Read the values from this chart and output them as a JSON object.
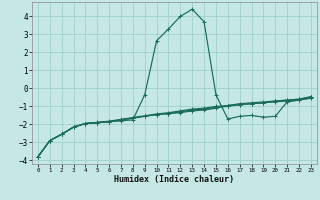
{
  "xlabel": "Humidex (Indice chaleur)",
  "xlim": [
    -0.5,
    23.5
  ],
  "ylim": [
    -4.2,
    4.8
  ],
  "yticks": [
    -4,
    -3,
    -2,
    -1,
    0,
    1,
    2,
    3,
    4
  ],
  "xticks": [
    0,
    1,
    2,
    3,
    4,
    5,
    6,
    7,
    8,
    9,
    10,
    11,
    12,
    13,
    14,
    15,
    16,
    17,
    18,
    19,
    20,
    21,
    22,
    23
  ],
  "background_color": "#c5e8e5",
  "grid_color": "#9fcfca",
  "line_color": "#1a6b5a",
  "line1_x": [
    0,
    1,
    2,
    3,
    4,
    5,
    6,
    7,
    8,
    9,
    10,
    11,
    12,
    13,
    14,
    15,
    16,
    17,
    18,
    19,
    20,
    21,
    22,
    23
  ],
  "line1_y": [
    -3.8,
    -2.9,
    -2.55,
    -2.15,
    -1.95,
    -1.9,
    -1.85,
    -1.8,
    -1.75,
    -0.35,
    2.65,
    3.3,
    4.0,
    4.4,
    3.7,
    -0.35,
    -1.7,
    -1.55,
    -1.5,
    -1.6,
    -1.55,
    -0.75,
    -0.65,
    -0.55
  ],
  "line2_x": [
    0,
    1,
    2,
    3,
    4,
    5,
    6,
    7,
    8,
    9,
    10,
    11,
    12,
    13,
    14,
    15,
    16,
    17,
    18,
    19,
    20,
    21,
    22,
    23
  ],
  "line2_y": [
    -3.8,
    -2.9,
    -2.55,
    -2.15,
    -1.95,
    -1.9,
    -1.85,
    -1.75,
    -1.65,
    -1.55,
    -1.45,
    -1.4,
    -1.35,
    -1.25,
    -1.2,
    -1.1,
    -0.95,
    -0.9,
    -0.85,
    -0.8,
    -0.7,
    -0.65,
    -0.6,
    -0.5
  ],
  "line3_x": [
    0,
    1,
    2,
    3,
    4,
    5,
    6,
    7,
    8,
    9,
    10,
    11,
    12,
    13,
    14,
    15,
    16,
    17,
    18,
    19,
    20,
    21,
    22,
    23
  ],
  "line3_y": [
    -3.8,
    -2.9,
    -2.55,
    -2.15,
    -1.95,
    -1.9,
    -1.85,
    -1.75,
    -1.65,
    -1.55,
    -1.45,
    -1.4,
    -1.3,
    -1.2,
    -1.15,
    -1.05,
    -1.0,
    -0.9,
    -0.85,
    -0.8,
    -0.75,
    -0.7,
    -0.65,
    -0.5
  ],
  "line4_x": [
    0,
    1,
    2,
    3,
    4,
    5,
    6,
    7,
    8,
    9,
    10,
    11,
    12,
    13,
    14,
    15,
    16,
    17,
    18,
    19,
    20,
    21,
    22,
    23
  ],
  "line4_y": [
    -3.8,
    -2.9,
    -2.55,
    -2.15,
    -1.95,
    -1.88,
    -1.82,
    -1.72,
    -1.62,
    -1.52,
    -1.42,
    -1.35,
    -1.25,
    -1.15,
    -1.1,
    -1.0,
    -0.95,
    -0.85,
    -0.8,
    -0.75,
    -0.7,
    -0.65,
    -0.6,
    -0.45
  ]
}
